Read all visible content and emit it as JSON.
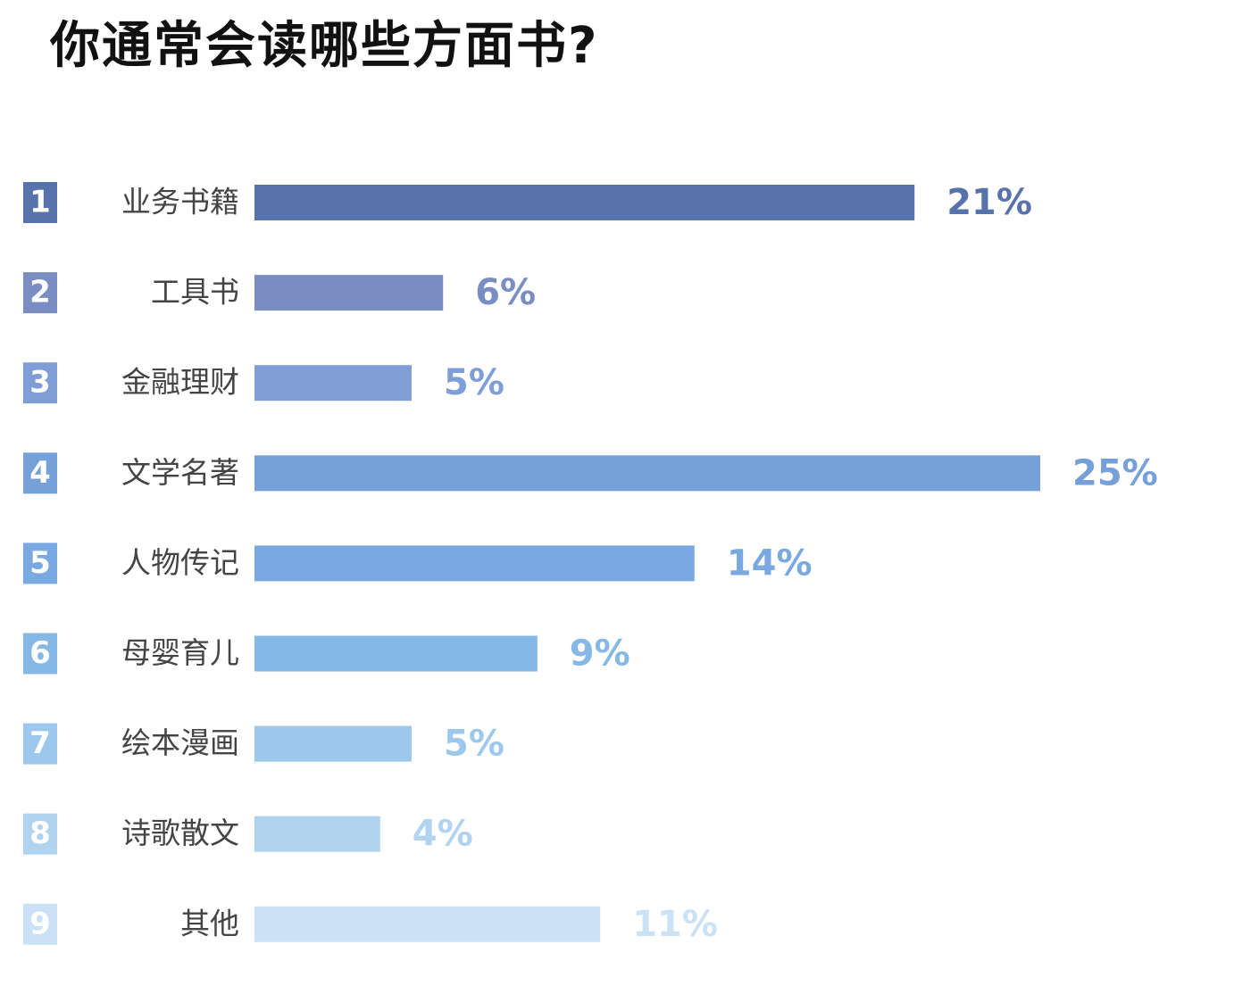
{
  "chart_data": {
    "type": "bar",
    "orientation": "horizontal",
    "title": "你通常会读哪些方面书?",
    "ranks": [
      "1",
      "2",
      "3",
      "4",
      "5",
      "6",
      "7",
      "8",
      "9"
    ],
    "categories": [
      "业务书籍",
      "工具书",
      "金融理财",
      "文学名著",
      "人物传记",
      "母婴育儿",
      "绘本漫画",
      "诗歌散文",
      "其他"
    ],
    "values": [
      21,
      6,
      5,
      25,
      14,
      9,
      5,
      4,
      11
    ],
    "value_labels": [
      "21%",
      "6%",
      "5%",
      "25%",
      "14%",
      "9%",
      "5%",
      "4%",
      "11%"
    ],
    "unit": "%",
    "xlim": [
      0,
      25
    ],
    "grid": false,
    "legend": "none",
    "colors": [
      "#5873AB",
      "#7A8DC3",
      "#7F9DD6",
      "#76A0D8",
      "#79A9E0",
      "#85B8E4",
      "#9CC8EE",
      "#B0D3F0",
      "#CBE1F6"
    ]
  }
}
